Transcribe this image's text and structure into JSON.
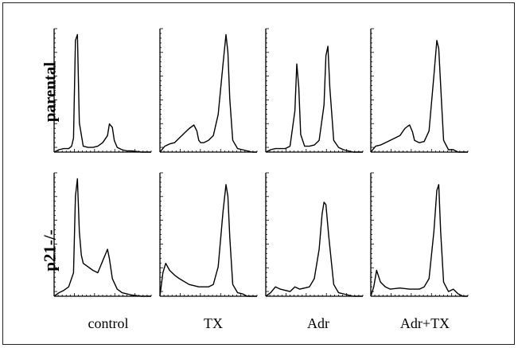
{
  "figure": {
    "row_labels": [
      "parental",
      "p21-/-"
    ],
    "column_labels": [
      "control",
      "TX",
      "Adr",
      "Adr+TX"
    ]
  },
  "chart_data": {
    "type": "line",
    "grid": false,
    "rows": [
      "parental",
      "p21-/-"
    ],
    "columns": [
      "control",
      "TX",
      "Adr",
      "Adr+TX"
    ],
    "panels": [
      {
        "row": "parental",
        "column": "control",
        "x": [
          0,
          5,
          10,
          15,
          18,
          20,
          22,
          24,
          26,
          30,
          35,
          40,
          45,
          50,
          55,
          57,
          60,
          62,
          65,
          70,
          75,
          80,
          90,
          100
        ],
        "y": [
          0.0,
          0.02,
          0.03,
          0.03,
          0.05,
          0.12,
          0.95,
          1.0,
          0.25,
          0.05,
          0.04,
          0.04,
          0.05,
          0.08,
          0.14,
          0.24,
          0.21,
          0.1,
          0.04,
          0.02,
          0.01,
          0.01,
          0.0,
          0.0
        ]
      },
      {
        "row": "parental",
        "column": "TX",
        "x": [
          0,
          5,
          10,
          15,
          20,
          25,
          30,
          35,
          38,
          40,
          42,
          45,
          50,
          55,
          60,
          65,
          68,
          70,
          72,
          75,
          80,
          85,
          90,
          95,
          100
        ],
        "y": [
          0.0,
          0.05,
          0.07,
          0.08,
          0.12,
          0.16,
          0.2,
          0.23,
          0.18,
          0.1,
          0.08,
          0.08,
          0.1,
          0.14,
          0.32,
          0.75,
          1.0,
          0.85,
          0.45,
          0.1,
          0.03,
          0.02,
          0.01,
          0.0,
          0.0
        ]
      },
      {
        "row": "parental",
        "column": "Adr",
        "x": [
          0,
          5,
          10,
          20,
          25,
          30,
          32,
          34,
          36,
          40,
          45,
          50,
          55,
          60,
          62,
          64,
          66,
          70,
          75,
          80,
          90,
          100
        ],
        "y": [
          0.0,
          0.02,
          0.03,
          0.03,
          0.05,
          0.35,
          0.75,
          0.55,
          0.15,
          0.05,
          0.05,
          0.06,
          0.1,
          0.4,
          0.82,
          0.9,
          0.55,
          0.1,
          0.04,
          0.02,
          0.0,
          0.0
        ]
      },
      {
        "row": "parental",
        "column": "Adr+TX",
        "x": [
          0,
          5,
          10,
          15,
          20,
          25,
          30,
          35,
          38,
          40,
          43,
          45,
          50,
          55,
          60,
          65,
          68,
          70,
          73,
          75,
          80,
          85,
          90,
          95,
          100
        ],
        "y": [
          0.0,
          0.05,
          0.06,
          0.08,
          0.1,
          0.12,
          0.14,
          0.2,
          0.22,
          0.23,
          0.17,
          0.1,
          0.08,
          0.09,
          0.18,
          0.65,
          0.95,
          0.88,
          0.4,
          0.1,
          0.02,
          0.02,
          0.0,
          0.0,
          0.0
        ]
      },
      {
        "row": "p21-/-",
        "column": "control",
        "x": [
          0,
          5,
          10,
          15,
          20,
          22,
          24,
          26,
          28,
          30,
          35,
          40,
          45,
          50,
          53,
          55,
          57,
          60,
          65,
          70,
          80,
          90,
          100
        ],
        "y": [
          0.0,
          0.03,
          0.05,
          0.08,
          0.2,
          0.85,
          1.0,
          0.55,
          0.35,
          0.28,
          0.25,
          0.22,
          0.2,
          0.3,
          0.36,
          0.4,
          0.32,
          0.15,
          0.06,
          0.03,
          0.01,
          0.0,
          0.0
        ]
      },
      {
        "row": "p21-/-",
        "column": "TX",
        "x": [
          0,
          3,
          6,
          10,
          15,
          20,
          30,
          40,
          50,
          55,
          60,
          65,
          68,
          70,
          72,
          75,
          80,
          85,
          90,
          100
        ],
        "y": [
          0.0,
          0.2,
          0.28,
          0.22,
          0.18,
          0.15,
          0.1,
          0.08,
          0.08,
          0.1,
          0.25,
          0.72,
          0.95,
          0.85,
          0.5,
          0.1,
          0.03,
          0.02,
          0.0,
          0.0
        ]
      },
      {
        "row": "p21-/-",
        "column": "Adr",
        "x": [
          0,
          5,
          10,
          15,
          20,
          25,
          30,
          35,
          40,
          45,
          50,
          55,
          58,
          60,
          62,
          65,
          70,
          75,
          80,
          90,
          100
        ],
        "y": [
          0.0,
          0.03,
          0.08,
          0.06,
          0.05,
          0.04,
          0.08,
          0.06,
          0.07,
          0.08,
          0.15,
          0.4,
          0.7,
          0.8,
          0.78,
          0.5,
          0.1,
          0.03,
          0.02,
          0.0,
          0.0
        ]
      },
      {
        "row": "p21-/-",
        "column": "Adr+TX",
        "x": [
          0,
          3,
          6,
          10,
          15,
          20,
          30,
          40,
          50,
          55,
          60,
          65,
          68,
          70,
          72,
          75,
          80,
          85,
          90,
          95,
          100
        ],
        "y": [
          0.0,
          0.08,
          0.22,
          0.12,
          0.08,
          0.06,
          0.07,
          0.06,
          0.06,
          0.08,
          0.15,
          0.55,
          0.9,
          0.95,
          0.55,
          0.12,
          0.04,
          0.06,
          0.02,
          0.0,
          0.0
        ]
      }
    ]
  }
}
